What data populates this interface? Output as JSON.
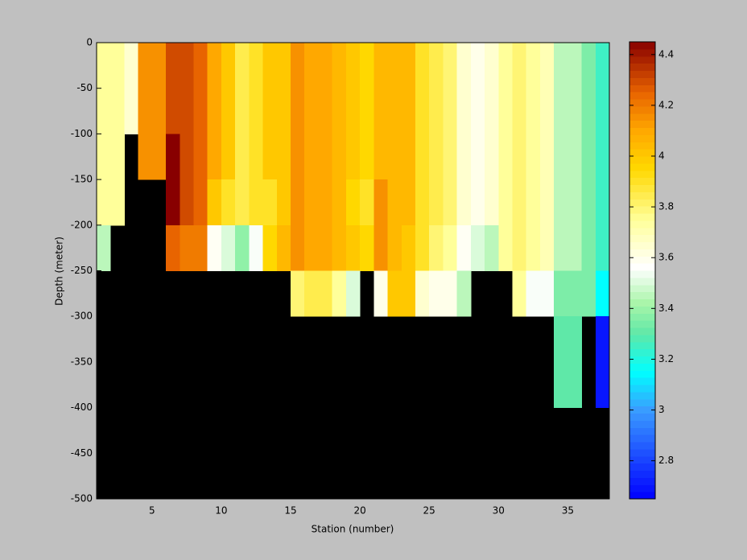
{
  "chart_data": {
    "type": "heatmap",
    "xlabel": "Station (number)",
    "ylabel": "Depth (meter)",
    "xlim": [
      1,
      38
    ],
    "xticks": [
      5,
      10,
      15,
      20,
      25,
      30,
      35
    ],
    "ylim": [
      -500,
      0
    ],
    "yticks": [
      -500,
      -450,
      -400,
      -350,
      -300,
      -250,
      -200,
      -150,
      -100,
      -50,
      0
    ],
    "x_edges": [
      1,
      2,
      3,
      4,
      5,
      6,
      7,
      8,
      9,
      10,
      11,
      12,
      13,
      14,
      15,
      16,
      17,
      18,
      19,
      20,
      21,
      22,
      23,
      24,
      25,
      26,
      27,
      28,
      29,
      30,
      31,
      32,
      33,
      34,
      35,
      36,
      37,
      38
    ],
    "y_edges": [
      0,
      -50,
      -100,
      -150,
      -200,
      -250,
      -300,
      -350,
      -400
    ],
    "values": [
      [
        3.75,
        3.75,
        3.65,
        4.15,
        4.15,
        4.3,
        4.3,
        4.25,
        4.1,
        4.0,
        3.85,
        3.9,
        4.0,
        4.0,
        4.15,
        4.1,
        4.1,
        4.05,
        4.0,
        3.95,
        4.05,
        4.05,
        4.05,
        3.9,
        3.85,
        3.8,
        3.65,
        3.6,
        3.65,
        3.75,
        3.8,
        3.75,
        3.7,
        3.45,
        3.45,
        3.35,
        3.25
      ],
      [
        3.75,
        3.75,
        3.65,
        4.15,
        4.15,
        4.3,
        4.3,
        4.25,
        4.1,
        4.0,
        3.85,
        3.9,
        4.0,
        4.0,
        4.15,
        4.1,
        4.1,
        4.05,
        4.0,
        3.95,
        4.05,
        4.05,
        4.05,
        3.9,
        3.85,
        3.8,
        3.65,
        3.6,
        3.65,
        3.75,
        3.8,
        3.75,
        3.7,
        3.45,
        3.45,
        3.35,
        3.25
      ],
      [
        3.75,
        3.75,
        null,
        4.15,
        4.15,
        4.45,
        4.3,
        4.25,
        4.1,
        4.0,
        3.85,
        3.9,
        4.0,
        4.0,
        4.15,
        4.1,
        4.1,
        4.05,
        4.0,
        3.95,
        4.05,
        4.05,
        4.05,
        3.9,
        3.85,
        3.8,
        3.65,
        3.6,
        3.65,
        3.75,
        3.8,
        3.75,
        3.7,
        3.45,
        3.45,
        3.35,
        3.25
      ],
      [
        3.75,
        3.75,
        null,
        null,
        null,
        4.45,
        4.3,
        4.25,
        4.0,
        3.9,
        3.85,
        3.9,
        3.9,
        4.0,
        4.15,
        4.1,
        4.1,
        4.05,
        3.95,
        3.9,
        4.15,
        4.05,
        4.05,
        3.9,
        3.85,
        3.8,
        3.65,
        3.6,
        3.65,
        3.75,
        3.8,
        3.75,
        3.7,
        3.45,
        3.45,
        3.35,
        3.25
      ],
      [
        3.45,
        null,
        null,
        null,
        null,
        4.25,
        4.2,
        4.2,
        3.58,
        3.5,
        3.38,
        3.55,
        3.95,
        4.05,
        4.15,
        4.1,
        4.1,
        4.05,
        4.0,
        3.95,
        4.15,
        4.05,
        4.0,
        3.9,
        3.8,
        3.75,
        3.58,
        3.5,
        3.45,
        3.75,
        3.8,
        3.75,
        3.7,
        3.45,
        3.45,
        3.35,
        3.25
      ],
      [
        null,
        null,
        null,
        null,
        null,
        null,
        null,
        null,
        null,
        null,
        null,
        null,
        null,
        null,
        3.8,
        3.85,
        3.85,
        3.75,
        3.5,
        null,
        3.6,
        4.0,
        4.0,
        3.65,
        3.6,
        3.6,
        3.45,
        null,
        null,
        null,
        3.75,
        3.55,
        3.55,
        3.35,
        3.35,
        3.35,
        3.15
      ],
      [
        null,
        null,
        null,
        null,
        null,
        null,
        null,
        null,
        null,
        null,
        null,
        null,
        null,
        null,
        null,
        null,
        null,
        null,
        null,
        null,
        null,
        null,
        null,
        null,
        null,
        null,
        null,
        null,
        null,
        null,
        null,
        null,
        null,
        3.3,
        3.3,
        null,
        2.7
      ],
      [
        null,
        null,
        null,
        null,
        null,
        null,
        null,
        null,
        null,
        null,
        null,
        null,
        null,
        null,
        null,
        null,
        null,
        null,
        null,
        null,
        null,
        null,
        null,
        null,
        null,
        null,
        null,
        null,
        null,
        null,
        null,
        null,
        null,
        3.3,
        3.3,
        null,
        2.7
      ]
    ],
    "clim": [
      2.65,
      4.45
    ],
    "cticks": [
      2.8,
      3,
      3.2,
      3.4,
      3.6,
      3.8,
      4,
      4.2,
      4.4
    ],
    "missing_color": "#000000",
    "colormap": [
      [
        2.65,
        "#0000ff"
      ],
      [
        3.0,
        "#3a9cff"
      ],
      [
        3.15,
        "#00ffff"
      ],
      [
        3.3,
        "#5fe8a8"
      ],
      [
        3.42,
        "#a8f5a8"
      ],
      [
        3.56,
        "#ffffff"
      ],
      [
        3.75,
        "#ffff9a"
      ],
      [
        3.95,
        "#ffd800"
      ],
      [
        4.1,
        "#ffa800"
      ],
      [
        4.25,
        "#e86400"
      ],
      [
        4.45,
        "#880000"
      ]
    ]
  }
}
